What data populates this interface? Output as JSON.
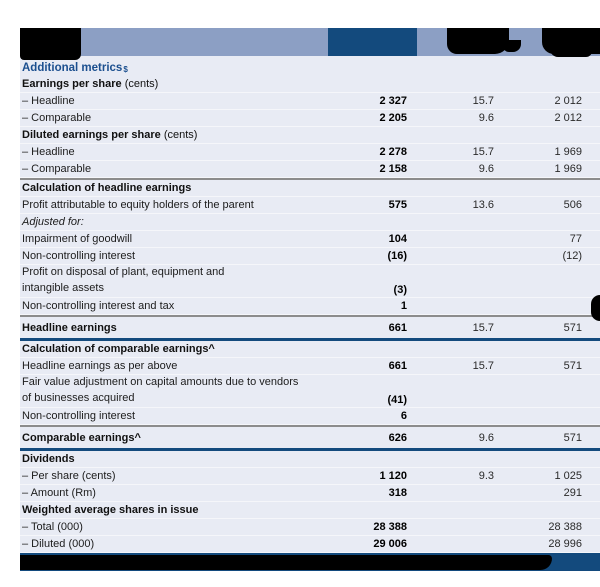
{
  "colors": {
    "header_bar": "#8C9FC4",
    "navy": "#134A7D",
    "body_bg": "#E8EBF4",
    "section_title": "#1B4F8F",
    "rule_gray": "#8C8C8C"
  },
  "header": {
    "current_period_column_highlighted": true,
    "labels_redacted": true
  },
  "table": {
    "title": {
      "text": "Additional metrics",
      "sup": "$"
    },
    "rows": [
      {
        "t": "sub",
        "label": "Earnings per share",
        "suffix": " (cents)"
      },
      {
        "t": "d",
        "label": "– Headline",
        "v1": "2 327",
        "pct": "15.7",
        "v2": "2 012"
      },
      {
        "t": "d",
        "label": "– Comparable",
        "v1": "2 205",
        "pct": "9.6",
        "v2": "2 012"
      },
      {
        "t": "sub",
        "label": "Diluted earnings per share",
        "suffix": " (cents)"
      },
      {
        "t": "d",
        "label": "– Headline",
        "v1": "2 278",
        "pct": "15.7",
        "v2": "1 969"
      },
      {
        "t": "d",
        "label": "– Comparable",
        "v1": "2 158",
        "pct": "9.6",
        "v2": "1 969"
      },
      {
        "t": "rg"
      },
      {
        "t": "sub",
        "label": "Calculation of headline earnings"
      },
      {
        "t": "d",
        "label": "Profit attributable to equity holders of the parent",
        "v1": "575",
        "pct": "13.6",
        "v2": "506"
      },
      {
        "t": "i",
        "label": "Adjusted for:"
      },
      {
        "t": "d",
        "label": "Impairment of goodwill",
        "v1": "104",
        "v2": "77"
      },
      {
        "t": "d",
        "label": "Non-controlling interest",
        "v1": "(16)",
        "v2": "(12)"
      },
      {
        "t": "d2",
        "lines": [
          "Profit on disposal of plant, equipment and",
          "intangible assets"
        ],
        "v1": "(3)"
      },
      {
        "t": "d",
        "label": "Non-controlling interest and tax",
        "v1": "1"
      },
      {
        "t": "rg"
      },
      {
        "t": "total",
        "label": "Headline earnings",
        "v1": "661",
        "pct": "15.7",
        "v2": "571"
      },
      {
        "t": "rn"
      },
      {
        "t": "sub",
        "label": "Calculation of comparable earnings^"
      },
      {
        "t": "d",
        "label": "Headline earnings as per above",
        "v1": "661",
        "pct": "15.7",
        "v2": "571"
      },
      {
        "t": "d2",
        "lines": [
          "Fair value adjustment on capital amounts due to vendors",
          "of businesses acquired"
        ],
        "v1": "(41)"
      },
      {
        "t": "d",
        "label": "Non-controlling interest",
        "v1": "6"
      },
      {
        "t": "rg"
      },
      {
        "t": "total",
        "label": "Comparable earnings^",
        "v1": "626",
        "pct": "9.6",
        "v2": "571"
      },
      {
        "t": "rn"
      },
      {
        "t": "sub",
        "label": "Dividends"
      },
      {
        "t": "d",
        "label": "– Per share (cents)",
        "v1": "1 120",
        "pct": "9.3",
        "v2": "1 025"
      },
      {
        "t": "d",
        "label": "– Amount (Rm)",
        "v1": "318",
        "v2": "291"
      },
      {
        "t": "sub",
        "label": "Weighted average shares in issue"
      },
      {
        "t": "d",
        "label": "– Total (000)",
        "v1": "28 388",
        "v2": "28 388"
      },
      {
        "t": "d",
        "label": "– Diluted (000)",
        "v1": "29 006",
        "v2": "28 996"
      }
    ]
  },
  "footer": {
    "footnote_redacted": true
  }
}
